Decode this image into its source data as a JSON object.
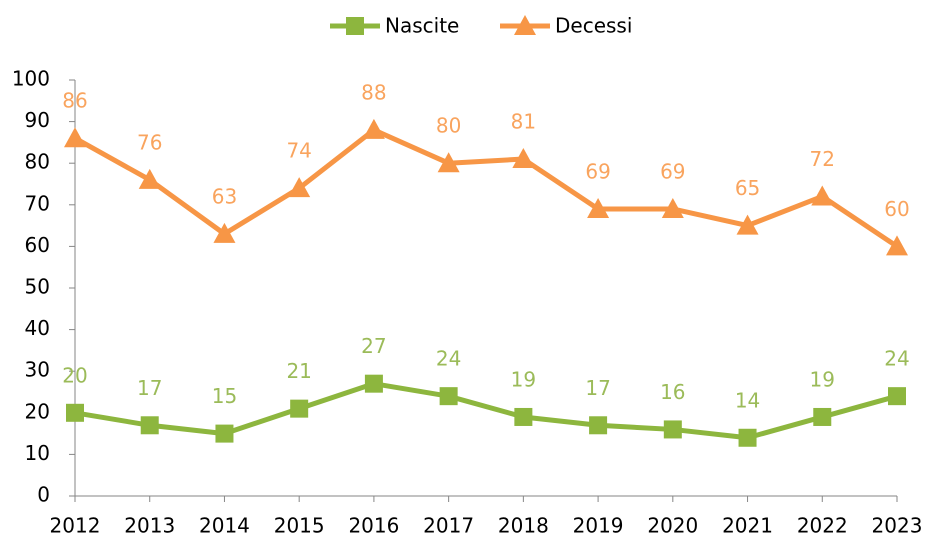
{
  "chart_data": {
    "type": "line",
    "categories": [
      "2012",
      "2013",
      "2014",
      "2015",
      "2016",
      "2017",
      "2018",
      "2019",
      "2020",
      "2021",
      "2022",
      "2023"
    ],
    "series": [
      {
        "name": "Nascite",
        "color": "#8db63e",
        "label_color": "#9bbb59",
        "marker": "square",
        "values": [
          20,
          17,
          15,
          21,
          27,
          24,
          19,
          17,
          16,
          14,
          19,
          24
        ]
      },
      {
        "name": "Decessi",
        "color": "#f79646",
        "label_color": "#f9a45e",
        "marker": "triangle",
        "values": [
          86,
          76,
          63,
          74,
          88,
          80,
          81,
          69,
          69,
          65,
          72,
          60
        ]
      }
    ],
    "ylim": [
      0,
      100
    ],
    "yticks": [
      0,
      10,
      20,
      30,
      40,
      50,
      60,
      70,
      80,
      90,
      100
    ],
    "legend": "top",
    "grid": false
  }
}
